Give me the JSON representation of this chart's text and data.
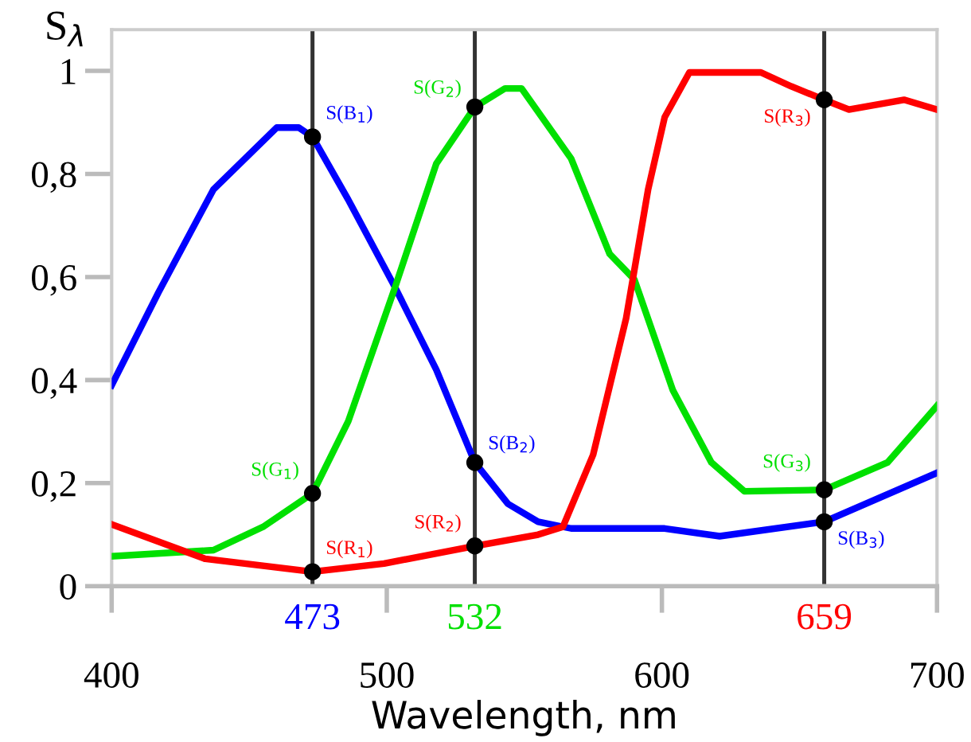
{
  "chart_data": {
    "type": "line",
    "xlabel": "Wavelength, nm",
    "ylabel": "S$_{λ}$",
    "xlim": [
      400,
      700
    ],
    "ylim": [
      0,
      1.08
    ],
    "xticks": [
      400,
      500,
      600,
      700
    ],
    "yticks": [
      {
        "value": 0,
        "label": "0"
      },
      {
        "value": 0.2,
        "label": "0,2"
      },
      {
        "value": 0.4,
        "label": "0,4"
      },
      {
        "value": 0.6,
        "label": "0,6"
      },
      {
        "value": 0.8,
        "label": "0,8"
      },
      {
        "value": 1,
        "label": "1"
      }
    ],
    "grid": false,
    "marker": "none",
    "line_style": "solid",
    "series": [
      {
        "color": "#0000ff",
        "x": [
          400,
          417,
          437,
          460,
          468,
          473,
          486,
          503,
          518,
          532,
          544,
          555,
          567,
          601,
          621,
          659,
          700
        ],
        "values": [
          0.39,
          0.57,
          0.77,
          0.89,
          0.89,
          0.872,
          0.75,
          0.58,
          0.42,
          0.24,
          0.16,
          0.125,
          0.112,
          0.112,
          0.097,
          0.125,
          0.22
        ]
      },
      {
        "color": "#00e000",
        "x": [
          400,
          437,
          455,
          473,
          486,
          503,
          518,
          532,
          543,
          549,
          567,
          581,
          590,
          604,
          618,
          630,
          659,
          682,
          700
        ],
        "values": [
          0.058,
          0.07,
          0.115,
          0.18,
          0.32,
          0.58,
          0.82,
          0.93,
          0.966,
          0.966,
          0.83,
          0.645,
          0.595,
          0.38,
          0.24,
          0.184,
          0.187,
          0.24,
          0.35
        ]
      },
      {
        "color": "#ff0000",
        "x": [
          400,
          434,
          473,
          499,
          532,
          555,
          564,
          575,
          587,
          595,
          601,
          610,
          636,
          647,
          659,
          668,
          688,
          700
        ],
        "values": [
          0.12,
          0.053,
          0.028,
          0.044,
          0.078,
          0.1,
          0.115,
          0.255,
          0.52,
          0.77,
          0.91,
          0.997,
          0.997,
          0.97,
          0.944,
          0.925,
          0.944,
          0.925
        ]
      },
      {
        "type": "scatter",
        "marker": "circle",
        "color": "#000000",
        "x": [
          473,
          473,
          473,
          532,
          532,
          532,
          659,
          659,
          659
        ],
        "values": [
          0.872,
          0.18,
          0.028,
          0.24,
          0.93,
          0.078,
          0.125,
          0.187,
          0.944
        ]
      }
    ],
    "ref_lines": [
      {
        "axis": "x",
        "value": 473,
        "label": "473",
        "color": "#333333"
      },
      {
        "axis": "x",
        "value": 532,
        "label": "532",
        "color": "#333333"
      },
      {
        "axis": "x",
        "value": 659,
        "label": "659",
        "color": "#333333"
      }
    ],
    "annotations": [
      {
        "text": "S(B$_{1}$)",
        "x": 473,
        "y": 0.872
      },
      {
        "text": "S(G$_{1}$)",
        "x": 473,
        "y": 0.18
      },
      {
        "text": "S(R$_{1}$)",
        "x": 473,
        "y": 0.028
      },
      {
        "text": "S(B$_{2}$)",
        "x": 532,
        "y": 0.24
      },
      {
        "text": "S(G$_{2}$)",
        "x": 532,
        "y": 0.93
      },
      {
        "text": "S(R$_{2}$)",
        "x": 532,
        "y": 0.078
      },
      {
        "text": "S(B$_{3}$)",
        "x": 659,
        "y": 0.125
      },
      {
        "text": "S(G$_{3}$)",
        "x": 659,
        "y": 0.187
      },
      {
        "text": "S(R$_{3}$)",
        "x": 659,
        "y": 0.944
      }
    ]
  }
}
